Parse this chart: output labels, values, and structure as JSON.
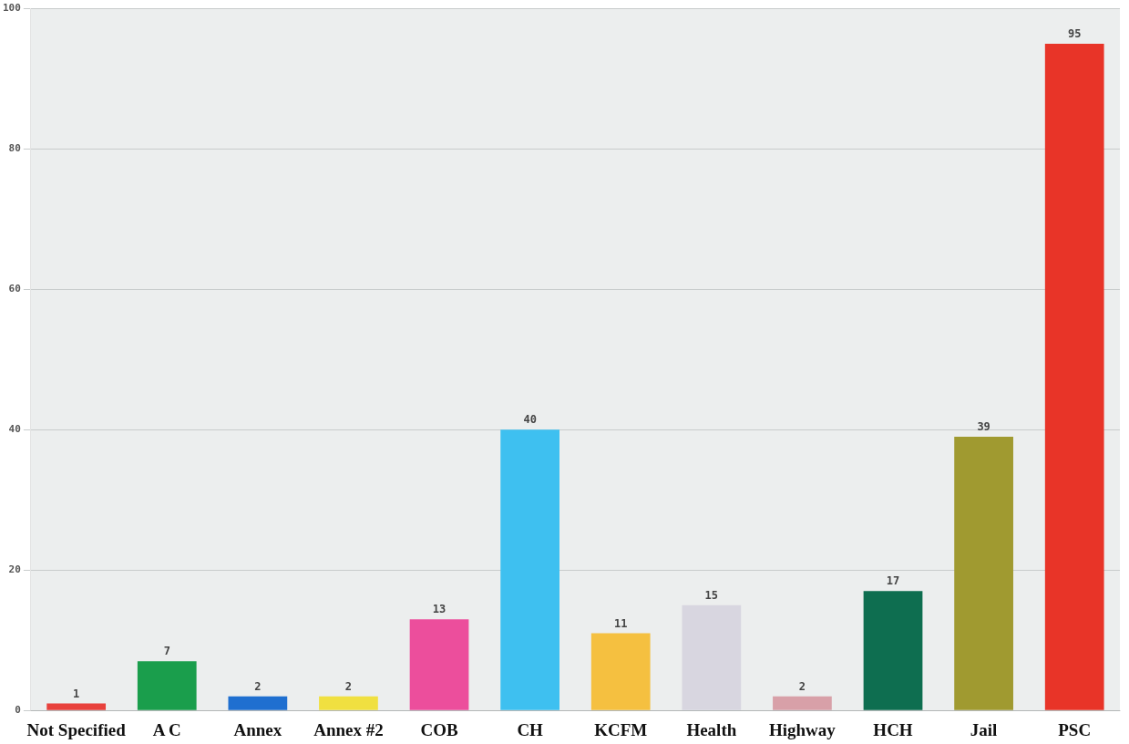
{
  "chart_data": {
    "type": "bar",
    "categories": [
      "Not Specified",
      "A C",
      "Annex",
      "Annex #2",
      "COB",
      "CH",
      "KCFM",
      "Health",
      "Highway",
      "HCH",
      "Jail",
      "PSC"
    ],
    "values": [
      1,
      7,
      2,
      2,
      13,
      40,
      11,
      15,
      2,
      17,
      39,
      95
    ],
    "colors": [
      "#e8413c",
      "#1a9e4c",
      "#1f6fd0",
      "#f0e040",
      "#ec4e9c",
      "#3ec0f0",
      "#f5c040",
      "#d8d6e0",
      "#d8a0a8",
      "#0e6e50",
      "#a09a30",
      "#e83428"
    ],
    "ylim": [
      0,
      100
    ],
    "yticks": [
      0,
      20,
      40,
      60,
      80,
      100
    ],
    "grid": "y",
    "data_labels": true
  }
}
